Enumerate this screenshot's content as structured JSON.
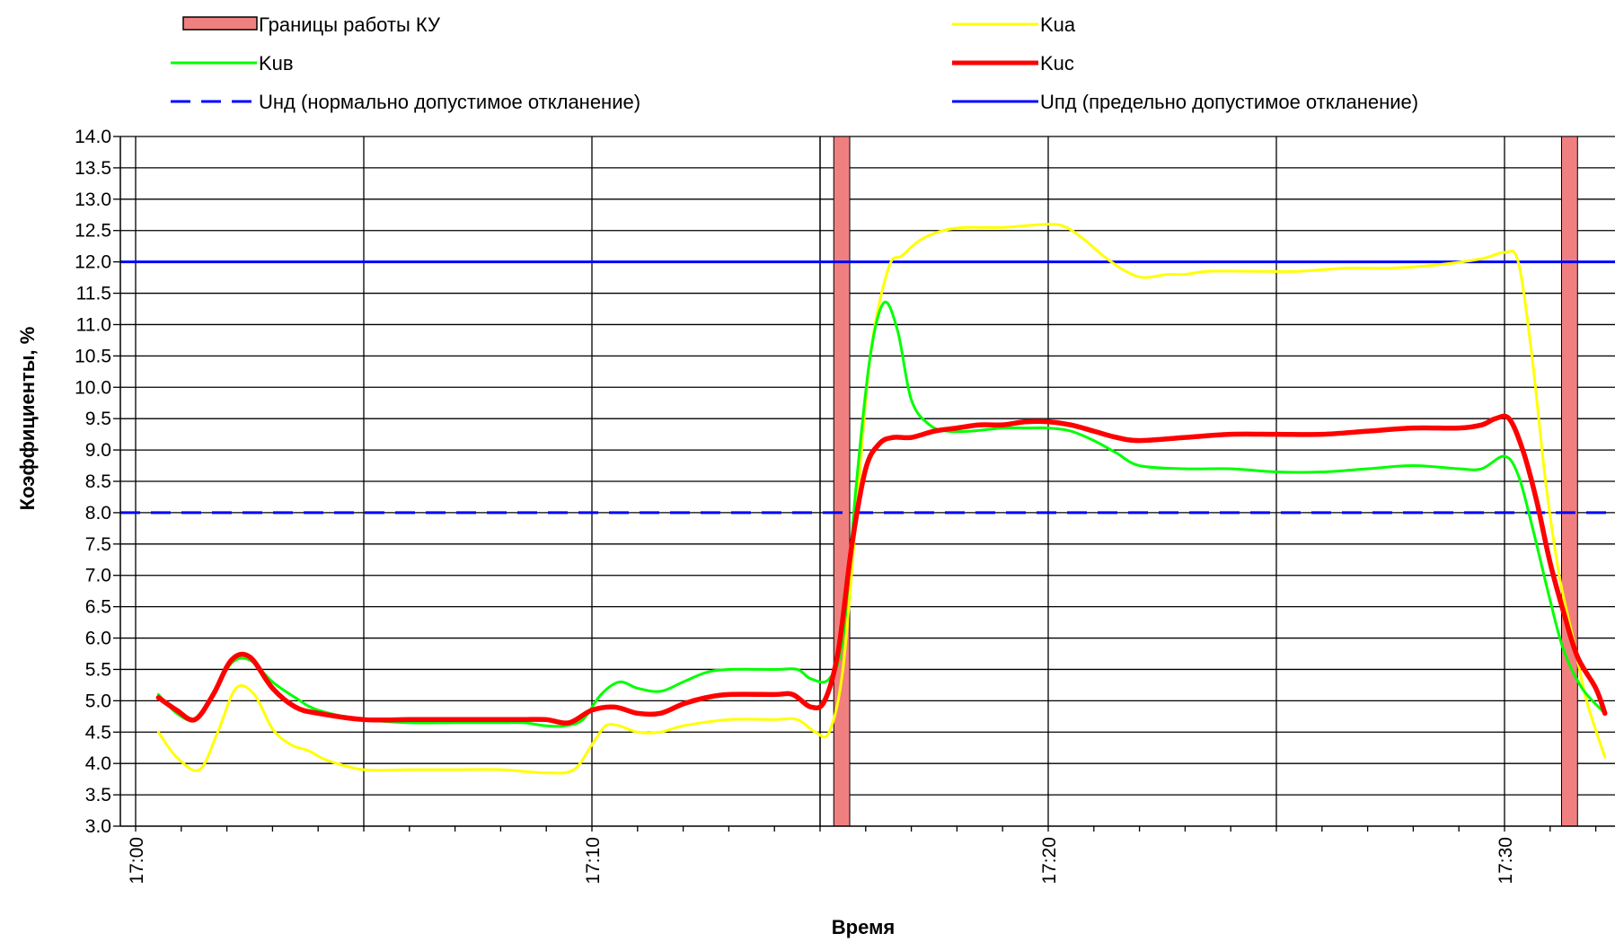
{
  "chart_data": {
    "type": "line",
    "xlabel": "Время",
    "ylabel": "Коэффициенты, %",
    "ylim": [
      3.0,
      14.0
    ],
    "y_ticks": [
      "3.0",
      "3.5",
      "4.0",
      "4.5",
      "5.0",
      "5.5",
      "6.0",
      "6.5",
      "7.0",
      "7.5",
      "8.0",
      "8.5",
      "9.0",
      "9.5",
      "10.0",
      "10.5",
      "11.0",
      "11.5",
      "12.0",
      "12.5",
      "13.0",
      "13.5",
      "14.0"
    ],
    "x_unit": "minutes after 17:00",
    "xlim": [
      0,
      32
    ],
    "x_ticks": [
      {
        "x": 0,
        "label": "17:00"
      },
      {
        "x": 10,
        "label": "17:10"
      },
      {
        "x": 20,
        "label": "17:20"
      },
      {
        "x": 30,
        "label": "17:30"
      }
    ],
    "x_gridlines": [
      0,
      5,
      10,
      15,
      20,
      25,
      30
    ],
    "grid": true,
    "legend_position": "top",
    "legend": [
      {
        "name": "Границы работы КУ",
        "kind": "box",
        "color": "#f08080"
      },
      {
        "name": "Kua",
        "kind": "line",
        "color": "#ffff00"
      },
      {
        "name": "Kuв",
        "kind": "line",
        "color": "#00ff00"
      },
      {
        "name": "Kuc",
        "kind": "line",
        "color": "#ff0000"
      },
      {
        "name": "Uнд (нормально допустимое откланение)",
        "kind": "dash",
        "color": "#0000ff"
      },
      {
        "name": "Uпд (предельно допустимое откланение)",
        "kind": "line",
        "color": "#0000ff"
      }
    ],
    "bands": [
      {
        "name": "Границы работы КУ",
        "x": [
          15.3,
          15.65
        ],
        "color": "#f08080"
      },
      {
        "name": "Границы работы КУ",
        "x": [
          31.25,
          31.6
        ],
        "color": "#f08080"
      }
    ],
    "hlines": [
      {
        "name": "Uнд (нормально допустимое откланение)",
        "y": 8.0,
        "style": "dash",
        "color": "#0000ff"
      },
      {
        "name": "Uпд (предельно допустимое откланение)",
        "y": 12.0,
        "style": "solid",
        "color": "#0000ff"
      }
    ],
    "series": [
      {
        "name": "Kua",
        "color": "#ffff00",
        "x": [
          0.5,
          0.9,
          1.4,
          1.8,
          2.2,
          2.6,
          3.0,
          3.4,
          3.8,
          4.2,
          5.0,
          6.0,
          7.0,
          8.0,
          9.0,
          9.6,
          10.0,
          10.3,
          10.6,
          11.0,
          11.5,
          12.0,
          13.0,
          14.0,
          14.5,
          14.9,
          15.2,
          15.5,
          15.8,
          16.1,
          16.5,
          16.8,
          17.2,
          17.7,
          18.2,
          19.0,
          20.0,
          20.4,
          20.8,
          21.2,
          21.7,
          22.1,
          22.6,
          23.0,
          23.5,
          24.5,
          25.5,
          26.5,
          27.5,
          28.5,
          29.5,
          30.0,
          30.3,
          30.6,
          30.9,
          31.2,
          31.5,
          31.8,
          32.2
        ],
        "values": [
          4.5,
          4.1,
          3.9,
          4.5,
          5.2,
          5.1,
          4.55,
          4.3,
          4.2,
          4.05,
          3.9,
          3.9,
          3.9,
          3.9,
          3.85,
          3.9,
          4.3,
          4.6,
          4.6,
          4.5,
          4.5,
          4.6,
          4.7,
          4.7,
          4.7,
          4.5,
          4.5,
          5.5,
          8.0,
          10.5,
          11.9,
          12.1,
          12.35,
          12.5,
          12.55,
          12.55,
          12.6,
          12.55,
          12.35,
          12.1,
          11.85,
          11.75,
          11.8,
          11.8,
          11.85,
          11.85,
          11.85,
          11.9,
          11.9,
          11.95,
          12.05,
          12.15,
          12.0,
          10.5,
          8.5,
          7.0,
          6.0,
          5.0,
          4.1
        ]
      },
      {
        "name": "Kuв",
        "color": "#00ff00",
        "x": [
          0.5,
          0.9,
          1.3,
          1.7,
          2.1,
          2.5,
          3.0,
          3.5,
          4.0,
          5.0,
          6.0,
          7.0,
          8.0,
          8.5,
          9.0,
          9.4,
          9.8,
          10.2,
          10.6,
          11.0,
          11.5,
          12.0,
          12.5,
          13.0,
          14.0,
          14.5,
          14.8,
          15.2,
          15.5,
          15.8,
          16.1,
          16.4,
          16.7,
          17.0,
          17.4,
          17.8,
          18.3,
          19.0,
          19.5,
          20.0,
          20.5,
          21.0,
          21.5,
          22.0,
          23.0,
          24.0,
          25.0,
          26.0,
          27.0,
          28.0,
          29.0,
          29.5,
          30.0,
          30.3,
          30.6,
          31.0,
          31.3,
          31.7,
          32.2
        ],
        "values": [
          5.1,
          4.8,
          4.7,
          5.1,
          5.6,
          5.65,
          5.3,
          5.05,
          4.85,
          4.7,
          4.65,
          4.65,
          4.65,
          4.65,
          4.6,
          4.6,
          4.7,
          5.1,
          5.3,
          5.2,
          5.15,
          5.3,
          5.45,
          5.5,
          5.5,
          5.5,
          5.35,
          5.35,
          6.0,
          8.5,
          10.5,
          11.35,
          10.9,
          9.8,
          9.4,
          9.3,
          9.3,
          9.35,
          9.35,
          9.35,
          9.3,
          9.15,
          8.95,
          8.75,
          8.7,
          8.7,
          8.65,
          8.65,
          8.7,
          8.75,
          8.7,
          8.7,
          8.9,
          8.6,
          7.8,
          6.6,
          5.8,
          5.2,
          4.8
        ]
      },
      {
        "name": "Kuc",
        "color": "#ff0000",
        "x": [
          0.5,
          0.9,
          1.3,
          1.7,
          2.1,
          2.5,
          3.0,
          3.5,
          4.0,
          5.0,
          6.0,
          7.0,
          8.0,
          8.5,
          9.0,
          9.5,
          10.0,
          10.5,
          11.0,
          11.5,
          12.0,
          12.5,
          13.0,
          14.0,
          14.4,
          14.8,
          15.1,
          15.4,
          15.7,
          16.0,
          16.3,
          16.6,
          17.0,
          17.5,
          18.0,
          18.5,
          19.0,
          19.5,
          20.0,
          20.5,
          21.0,
          21.5,
          22.0,
          23.0,
          24.0,
          25.0,
          26.0,
          27.0,
          28.0,
          29.0,
          29.5,
          29.8,
          30.1,
          30.4,
          30.7,
          31.0,
          31.3,
          31.6,
          32.0,
          32.2
        ],
        "values": [
          5.05,
          4.85,
          4.7,
          5.1,
          5.65,
          5.7,
          5.2,
          4.9,
          4.8,
          4.7,
          4.7,
          4.7,
          4.7,
          4.7,
          4.7,
          4.65,
          4.85,
          4.9,
          4.8,
          4.8,
          4.95,
          5.05,
          5.1,
          5.1,
          5.1,
          4.9,
          5.0,
          5.8,
          7.5,
          8.7,
          9.1,
          9.2,
          9.2,
          9.3,
          9.35,
          9.4,
          9.4,
          9.45,
          9.45,
          9.4,
          9.3,
          9.2,
          9.15,
          9.2,
          9.25,
          9.25,
          9.25,
          9.3,
          9.35,
          9.35,
          9.4,
          9.5,
          9.5,
          9.0,
          8.2,
          7.2,
          6.4,
          5.7,
          5.2,
          4.8
        ]
      }
    ]
  }
}
